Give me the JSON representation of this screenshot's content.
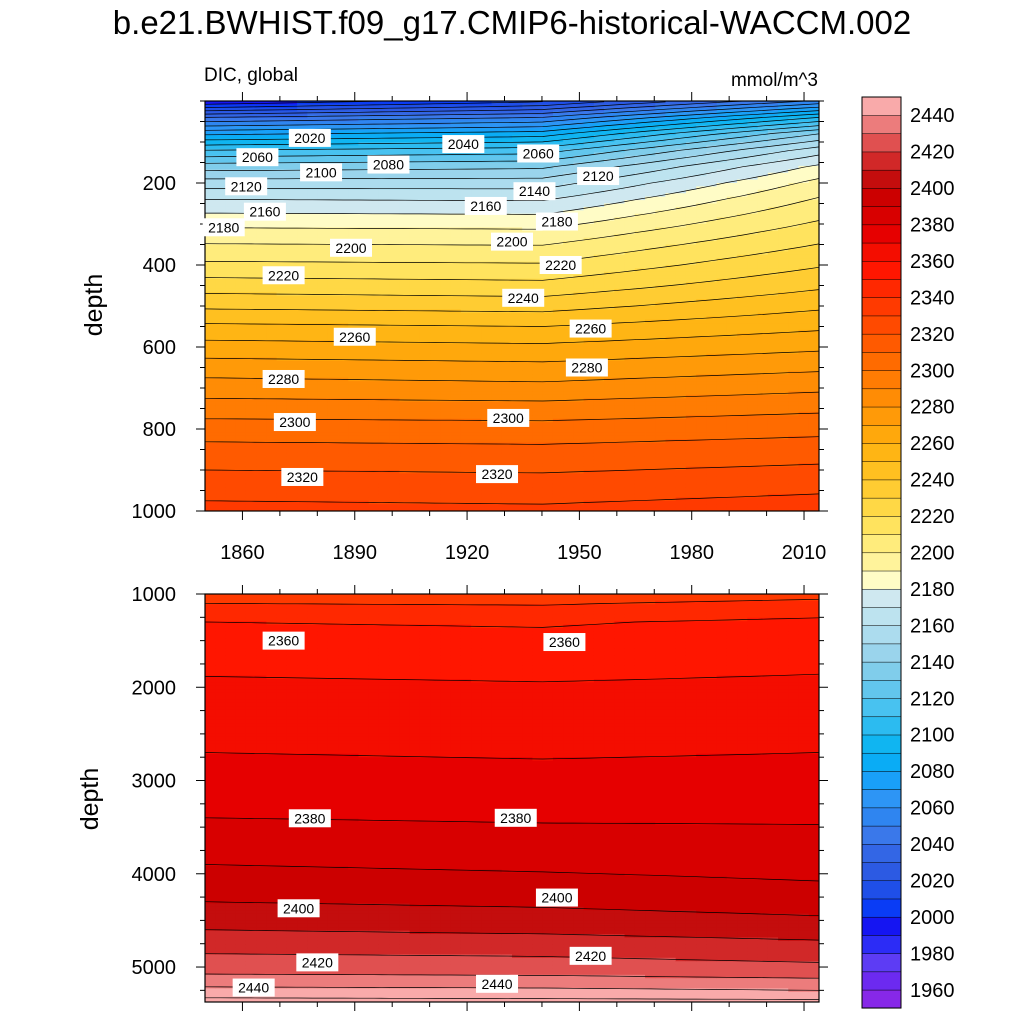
{
  "chart_data": {
    "type": "contour",
    "title": "b.e21.BWHIST.f09_g17.CMIP6-historical-WACCM.002",
    "variable_label": "DIC, global",
    "units_label": "mmol/m^3",
    "x_axis": {
      "label": "",
      "range": [
        1850,
        2014
      ],
      "ticks": [
        1860,
        1890,
        1920,
        1950,
        1980,
        2010
      ],
      "tick_labels": [
        "1860",
        "1890",
        "1920",
        "1950",
        "1980",
        "2010"
      ]
    },
    "panels": [
      {
        "name": "upper",
        "ylabel": "depth",
        "depth_range": [
          0,
          1000
        ],
        "y_ticks": [
          200,
          400,
          600,
          800,
          1000
        ],
        "y_tick_labels": [
          "200",
          "400",
          "600",
          "800",
          "1000"
        ],
        "y_minor_step": 50,
        "x_tick_labels_shown": true,
        "contour_interval": 10,
        "contour_levels": [
          {
            "year": 1850,
            "min": 1990,
            "depth": [
              0,
              40,
              80,
              120,
              160,
              200,
              240,
              280,
              320,
              360,
              400,
              450,
              500,
              550,
              600,
              650,
              700,
              750,
              800,
              850,
              900,
              950,
              1000
            ],
            "value": [
              1990,
              2040,
              2078,
              2110,
              2135,
              2155,
              2170,
              2182,
              2193,
              2203,
              2212,
              2225,
              2238,
              2252,
              2264,
              2275,
              2285,
              2295,
              2305,
              2313,
              2320,
              2327,
              2333
            ]
          },
          {
            "year": 1940,
            "min": 1990,
            "depth": [
              0,
              40,
              80,
              120,
              160,
              200,
              240,
              280,
              320,
              360,
              400,
              450,
              500,
              550,
              600,
              650,
              700,
              750,
              800,
              850,
              900,
              950,
              1000
            ],
            "value": [
              2008,
              2050,
              2085,
              2115,
              2138,
              2155,
              2169,
              2181,
              2192,
              2202,
              2211,
              2223,
              2236,
              2250,
              2262,
              2273,
              2283,
              2294,
              2304,
              2312,
              2319,
              2326,
              2332
            ]
          },
          {
            "year": 2014,
            "min": 1990,
            "depth": [
              0,
              40,
              80,
              120,
              160,
              200,
              240,
              280,
              320,
              360,
              400,
              450,
              500,
              550,
              600,
              650,
              700,
              750,
              800,
              850,
              900,
              950,
              1000
            ],
            "value": [
              2052,
              2100,
              2140,
              2165,
              2182,
              2193,
              2201,
              2208,
              2215,
              2222,
              2229,
              2238,
              2248,
              2258,
              2268,
              2278,
              2288,
              2298,
              2307,
              2315,
              2322,
              2329,
              2335
            ]
          }
        ],
        "contour_labels": [
          {
            "text": "2020",
            "year": 1878,
            "depth": 90
          },
          {
            "text": "2060",
            "year": 1864,
            "depth": 137
          },
          {
            "text": "2040",
            "year": 1919,
            "depth": 105
          },
          {
            "text": "2060",
            "year": 1939,
            "depth": 128
          },
          {
            "text": "2080",
            "year": 1899,
            "depth": 155
          },
          {
            "text": "2100",
            "year": 1881,
            "depth": 174
          },
          {
            "text": "2120",
            "year": 1861,
            "depth": 208
          },
          {
            "text": "2120",
            "year": 1955,
            "depth": 183
          },
          {
            "text": "2140",
            "year": 1938,
            "depth": 220
          },
          {
            "text": "2160",
            "year": 1866,
            "depth": 270
          },
          {
            "text": "2160",
            "year": 1925,
            "depth": 256
          },
          {
            "text": "2180",
            "year": 1855,
            "depth": 308
          },
          {
            "text": "2180",
            "year": 1944,
            "depth": 294
          },
          {
            "text": "2200",
            "year": 1889,
            "depth": 358
          },
          {
            "text": "2200",
            "year": 1932,
            "depth": 343
          },
          {
            "text": "2220",
            "year": 1871,
            "depth": 425
          },
          {
            "text": "2220",
            "year": 1945,
            "depth": 400
          },
          {
            "text": "2240",
            "year": 1935,
            "depth": 480
          },
          {
            "text": "2260",
            "year": 1890,
            "depth": 575
          },
          {
            "text": "2260",
            "year": 1953,
            "depth": 555
          },
          {
            "text": "2280",
            "year": 1871,
            "depth": 678
          },
          {
            "text": "2280",
            "year": 1952,
            "depth": 650
          },
          {
            "text": "2300",
            "year": 1874,
            "depth": 783
          },
          {
            "text": "2300",
            "year": 1931,
            "depth": 773
          },
          {
            "text": "2320",
            "year": 1876,
            "depth": 917
          },
          {
            "text": "2320",
            "year": 1928,
            "depth": 910
          }
        ]
      },
      {
        "name": "lower",
        "ylabel": "depth",
        "depth_range": [
          1000,
          5375
        ],
        "y_ticks": [
          1000,
          2000,
          3000,
          4000,
          5000
        ],
        "y_tick_labels": [
          "1000",
          "2000",
          "3000",
          "4000",
          "5000"
        ],
        "y_minor_step": 250,
        "x_tick_labels_shown": false,
        "contour_interval": 10,
        "contour_levels": [
          {
            "year": 1850,
            "min": 2330,
            "depth": [
              1000,
              1100,
              1300,
              2000,
              2700,
              3400,
              3900,
              4300,
              4600,
              4800,
              5000,
              5150,
              5250,
              5330,
              5375
            ],
            "value": [
              2333,
              2340,
              2350,
              2362,
              2370,
              2380,
              2390,
              2400,
              2410,
              2418,
              2425,
              2435,
              2443,
              2450,
              2455
            ]
          },
          {
            "year": 1940,
            "min": 2330,
            "depth": [
              1000,
              1100,
              1300,
              2000,
              2700,
              3400,
              3900,
              4300,
              4600,
              4800,
              5000,
              5150,
              5250,
              5330,
              5375
            ],
            "value": [
              2332,
              2339,
              2349,
              2361,
              2369,
              2379,
              2388,
              2398,
              2408,
              2417,
              2424,
              2434,
              2442,
              2449,
              2454
            ]
          },
          {
            "year": 2014,
            "min": 2330,
            "depth": [
              1000,
              1100,
              1300,
              2000,
              2700,
              3400,
              3900,
              4300,
              4600,
              4800,
              5000,
              5150,
              5250,
              5330,
              5375
            ],
            "value": [
              2336,
              2343,
              2352,
              2362,
              2370,
              2379,
              2386,
              2395,
              2405,
              2414,
              2422,
              2432,
              2440,
              2448,
              2453
            ]
          }
        ],
        "contour_labels": [
          {
            "text": "2360",
            "year": 1871,
            "depth": 1500
          },
          {
            "text": "2360",
            "year": 1946,
            "depth": 1515
          },
          {
            "text": "2380",
            "year": 1878,
            "depth": 3405
          },
          {
            "text": "2380",
            "year": 1933,
            "depth": 3400
          },
          {
            "text": "2400",
            "year": 1875,
            "depth": 4370
          },
          {
            "text": "2400",
            "year": 1944,
            "depth": 4255
          },
          {
            "text": "2420",
            "year": 1880,
            "depth": 4950
          },
          {
            "text": "2420",
            "year": 1953,
            "depth": 4880
          },
          {
            "text": "2440",
            "year": 1863,
            "depth": 5220
          },
          {
            "text": "2440",
            "year": 1928,
            "depth": 5180
          }
        ]
      }
    ],
    "colorbar": {
      "levels": [
        1950,
        1960,
        1970,
        1980,
        1990,
        2000,
        2010,
        2020,
        2030,
        2040,
        2050,
        2060,
        2070,
        2080,
        2090,
        2100,
        2110,
        2120,
        2130,
        2140,
        2150,
        2160,
        2170,
        2180,
        2190,
        2200,
        2210,
        2220,
        2230,
        2240,
        2250,
        2260,
        2270,
        2280,
        2290,
        2300,
        2310,
        2320,
        2330,
        2340,
        2350,
        2360,
        2370,
        2380,
        2390,
        2400,
        2410,
        2420,
        2430,
        2440,
        2450
      ],
      "labels": [
        "1960",
        "1980",
        "2000",
        "2020",
        "2040",
        "2060",
        "2080",
        "2100",
        "2120",
        "2140",
        "2160",
        "2180",
        "2200",
        "2220",
        "2240",
        "2260",
        "2280",
        "2300",
        "2320",
        "2340",
        "2360",
        "2380",
        "2400",
        "2420",
        "2440"
      ],
      "colors": [
        "#8728e8",
        "#6c2af0",
        "#5d3cf4",
        "#2c2cf6",
        "#1515f2",
        "#0a3cf5",
        "#1f4fe8",
        "#2c5ae3",
        "#3366e5",
        "#3a78ea",
        "#2f85f0",
        "#2d95f5",
        "#19a0f8",
        "#0aacf5",
        "#10b5f1",
        "#2cbbf0",
        "#48c2f0",
        "#62c6ed",
        "#80cdeb",
        "#9ad4ec",
        "#acdcee",
        "#bde3ef",
        "#cfe8f0",
        "#fffcc6",
        "#fff39b",
        "#ffec7c",
        "#ffe35e",
        "#ffd845",
        "#ffcc32",
        "#ffc020",
        "#ffb514",
        "#ffa80c",
        "#ff9a08",
        "#ff8c05",
        "#ff7c03",
        "#ff6b00",
        "#ff5a00",
        "#ff4a00",
        "#ff3a00",
        "#ff2800",
        "#ff1600",
        "#f40d00",
        "#e60000",
        "#d80000",
        "#cc0000",
        "#c40d0d",
        "#d12828",
        "#e05050",
        "#ec7c7c",
        "#f9aaaa"
      ]
    }
  }
}
